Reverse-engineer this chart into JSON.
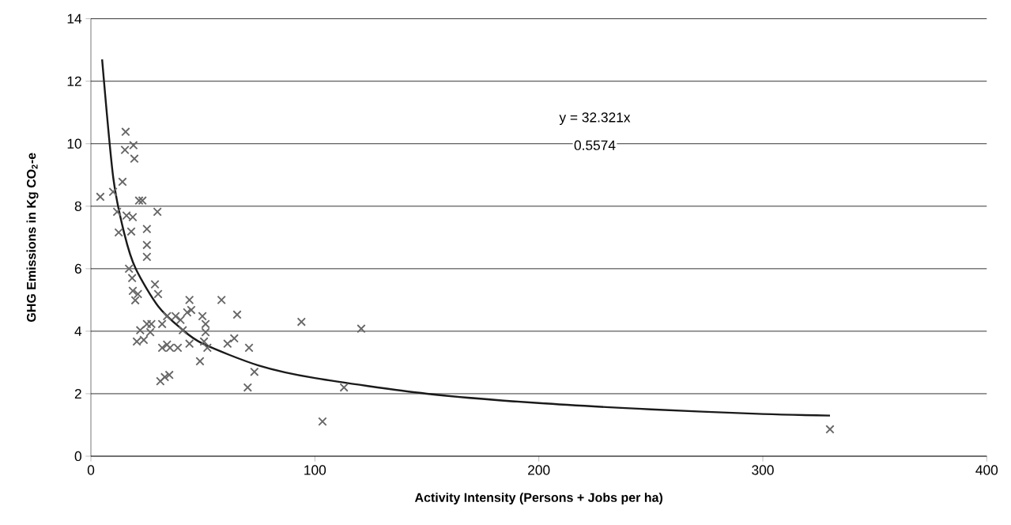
{
  "chart_data": {
    "type": "scatter",
    "xlabel": "Activity Intensity (Persons + Jobs per ha)",
    "ylabel": "GHG Emissions in Kg CO$_{2}$-e",
    "annotations": [
      "y = 32.321x",
      "0.5574"
    ],
    "xlim": [
      0,
      400
    ],
    "ylim": [
      0,
      14
    ],
    "xticks": [
      0,
      100,
      200,
      300,
      400
    ],
    "yticks": [
      0,
      2,
      4,
      6,
      8,
      10,
      12,
      14
    ],
    "grid": "y",
    "marker": "cross",
    "series": [
      {
        "color": "#666666",
        "x": [
          4.2,
          9.9,
          14.1,
          15.5,
          15.2,
          19,
          19.4,
          11.7,
          12.4,
          15.9,
          18,
          21.5,
          23,
          29.7,
          18.7,
          25,
          25,
          25,
          17,
          18.4,
          18.7,
          19.8,
          21,
          28.6,
          30,
          25,
          27,
          20.5,
          23.6,
          22,
          26.5,
          31.8,
          31.8,
          34,
          31,
          33,
          35,
          48.7,
          34,
          37.8,
          40,
          44,
          44.8,
          43,
          41,
          38.8,
          35.3,
          44,
          49.8,
          51.2,
          51.2,
          50.5,
          52,
          58.3,
          61,
          64,
          65.3,
          70.6,
          70,
          73,
          94,
          103.4,
          120.7,
          113,
          330
        ],
        "values": [
          8.3,
          8.46,
          8.78,
          10.38,
          9.8,
          9.95,
          9.52,
          7.82,
          7.16,
          7.7,
          7.19,
          8.18,
          8.18,
          7.82,
          7.65,
          7.27,
          6.76,
          6.38,
          6.0,
          5.7,
          5.29,
          4.99,
          5.19,
          5.5,
          5.19,
          4.23,
          4.23,
          3.67,
          3.72,
          4.03,
          3.97,
          4.23,
          3.47,
          3.57,
          2.4,
          2.53,
          2.6,
          3.04,
          4.48,
          4.48,
          4.36,
          5.0,
          4.68,
          4.6,
          4.03,
          3.47,
          3.47,
          3.6,
          4.48,
          4.23,
          3.97,
          3.67,
          3.47,
          5.0,
          3.6,
          3.77,
          4.53,
          3.47,
          2.2,
          2.7,
          4.3,
          1.11,
          4.08,
          2.2,
          0.86
        ]
      },
      {
        "type": "line",
        "color": "#1a1a1a",
        "marker": "none",
        "line_style": "solid",
        "x": [
          5,
          10,
          15,
          20,
          30,
          40,
          50,
          75,
          100,
          150,
          200,
          250,
          300,
          330
        ],
        "values": [
          12.7,
          8.9,
          7.1,
          6.0,
          4.8,
          4.1,
          3.6,
          2.9,
          2.5,
          2.0,
          1.7,
          1.5,
          1.35,
          1.3
        ]
      }
    ]
  }
}
